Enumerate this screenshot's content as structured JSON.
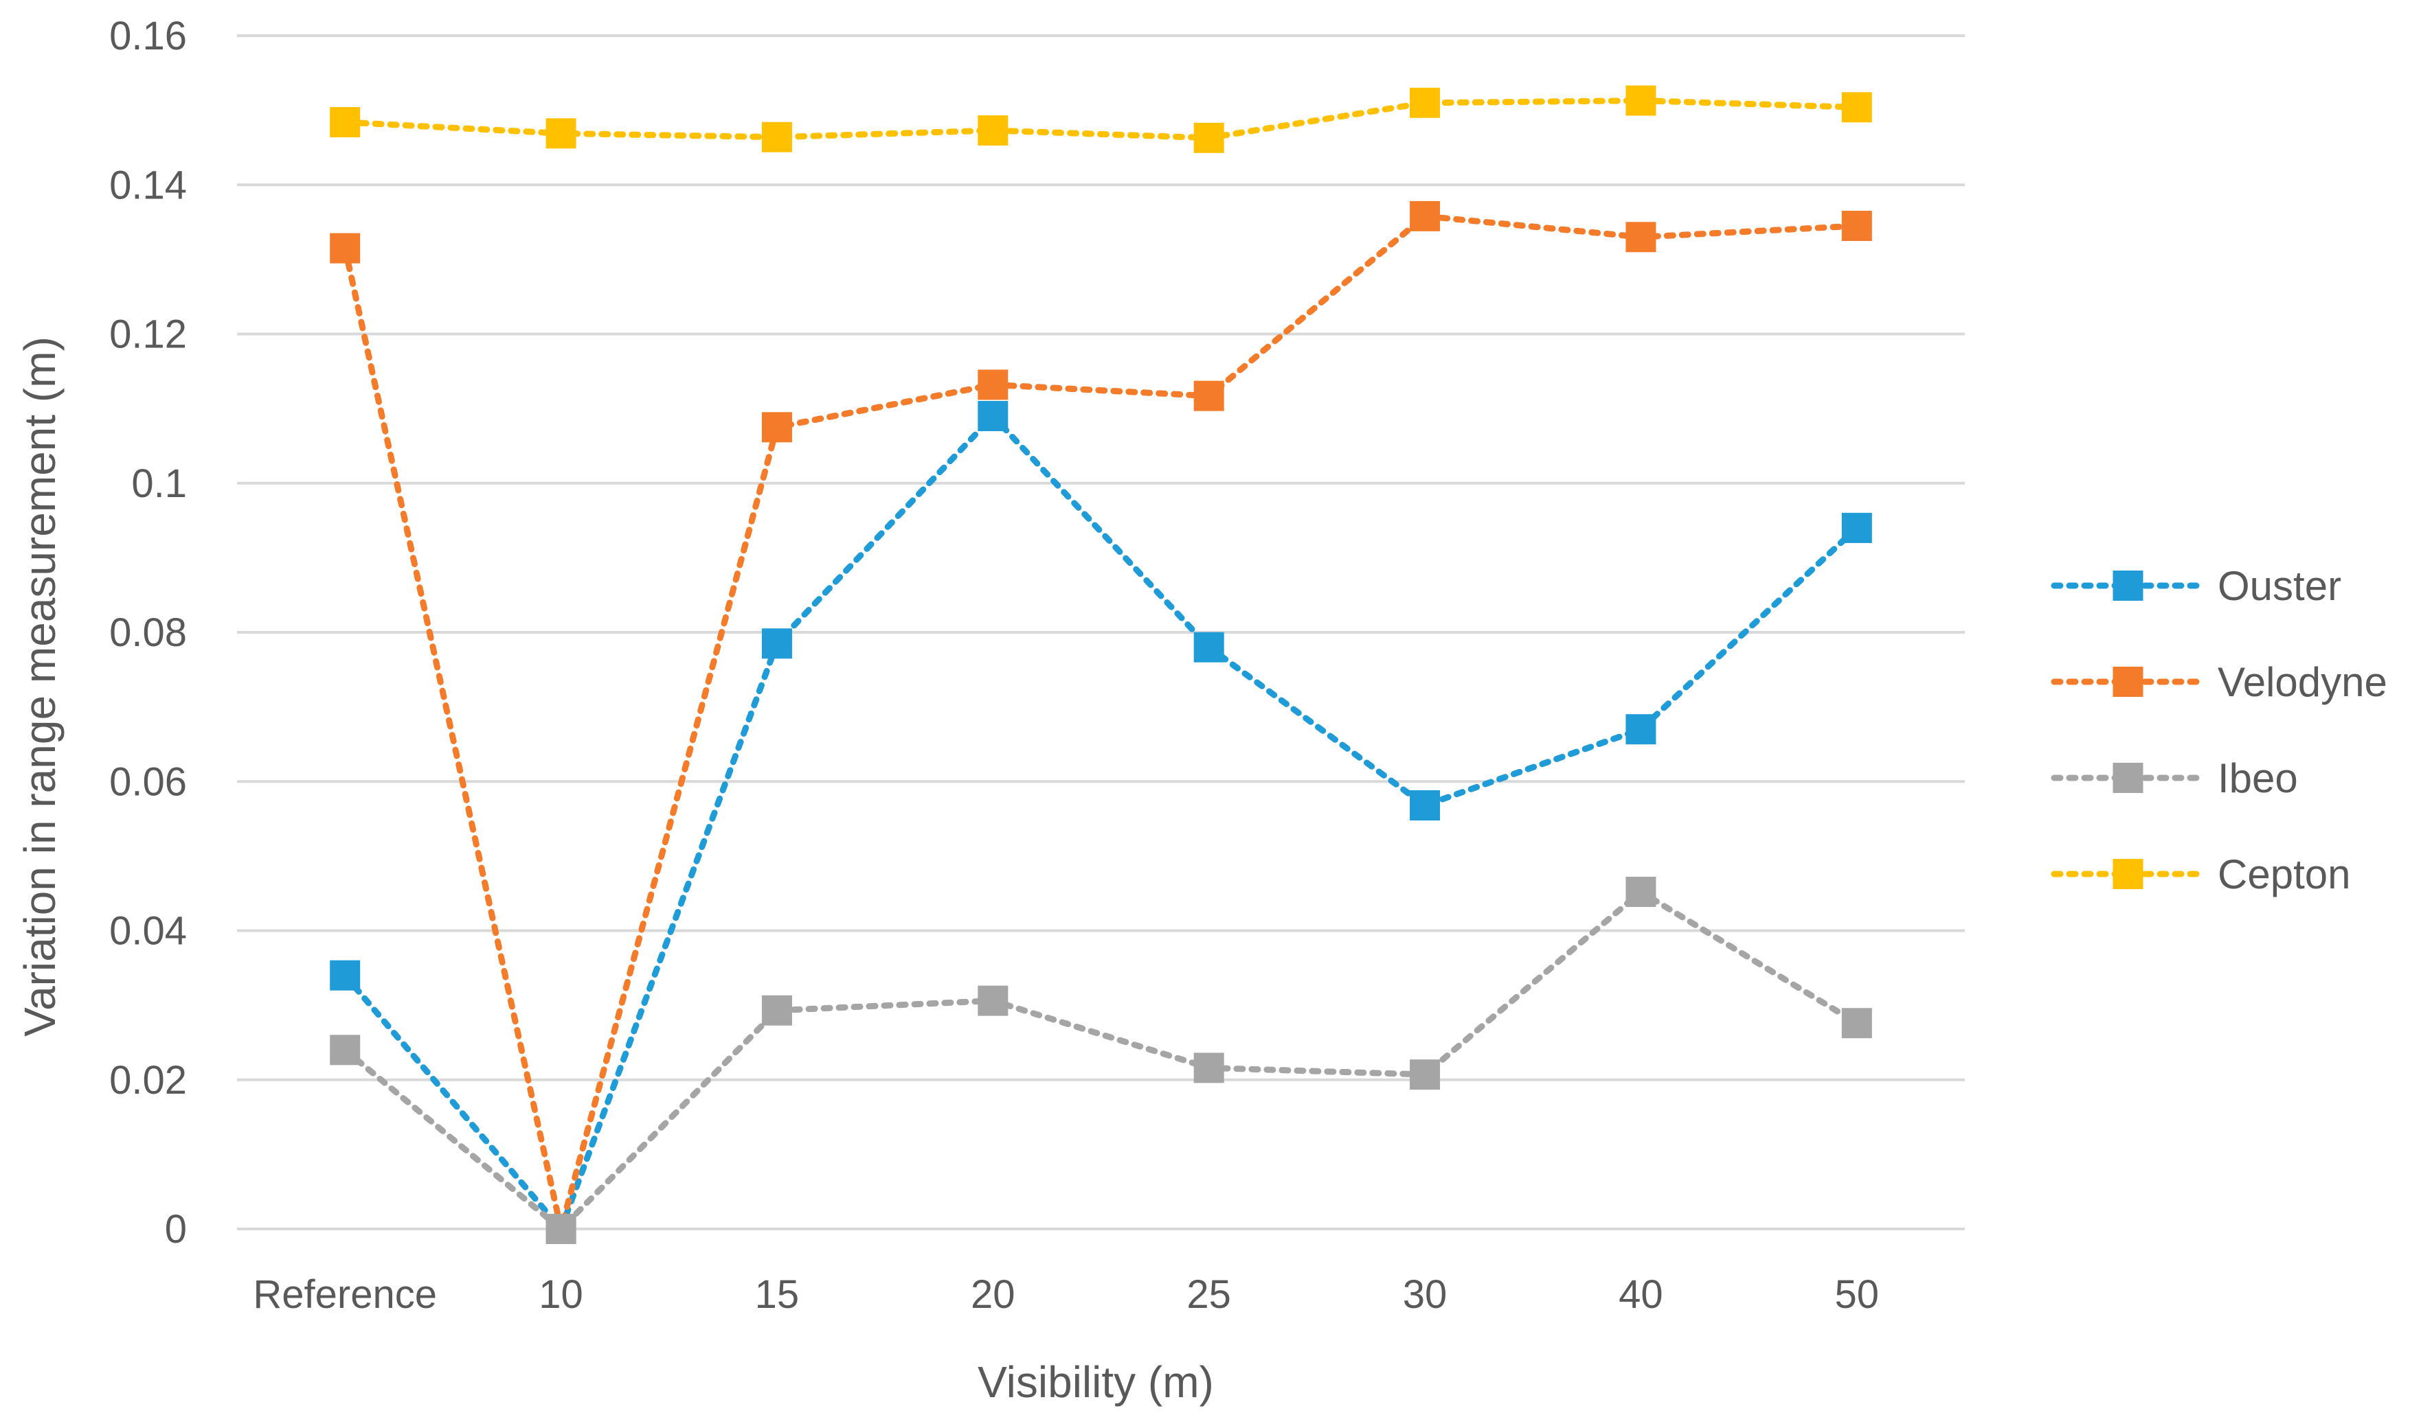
{
  "chart_data": {
    "type": "line",
    "title": "",
    "xlabel": "Visibility (m)",
    "ylabel": "Variation in range measurement (m)",
    "categories": [
      "Reference",
      "10",
      "15",
      "20",
      "25",
      "30",
      "40",
      "50"
    ],
    "ylim": [
      0,
      0.16
    ],
    "yticks": [
      0,
      0.02,
      0.04,
      0.06,
      0.08,
      0.1,
      0.12,
      0.14,
      0.16
    ],
    "ytick_labels": [
      "0",
      "0.02",
      "0.04",
      "0.06",
      "0.08",
      "0.1",
      "0.12",
      "0.14",
      "0.16"
    ],
    "grid": true,
    "legend_position": "right",
    "series": [
      {
        "name": "Ouster",
        "color": "#1f9bd7",
        "values": [
          0.034,
          0.0,
          0.0785,
          0.109,
          0.078,
          0.0568,
          0.067,
          0.094
        ]
      },
      {
        "name": "Velodyne",
        "color": "#f47b2a",
        "values": [
          0.1315,
          0.0,
          0.1075,
          0.1132,
          0.1117,
          0.1358,
          0.133,
          0.1345
        ]
      },
      {
        "name": "Ibeo",
        "color": "#a5a5a5",
        "values": [
          0.024,
          0.0,
          0.0293,
          0.0306,
          0.0216,
          0.0207,
          0.0452,
          0.0276
        ]
      },
      {
        "name": "Cepton",
        "color": "#ffc000",
        "values": [
          0.1484,
          0.1469,
          0.1464,
          0.1473,
          0.1463,
          0.151,
          0.1513,
          0.1504
        ]
      }
    ]
  }
}
